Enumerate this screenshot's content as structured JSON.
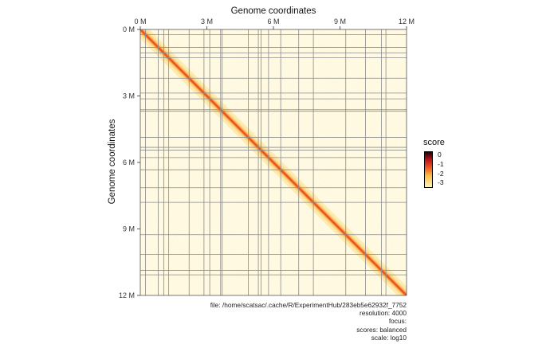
{
  "chart_data": {
    "type": "heatmap",
    "title": "Genome coordinates",
    "xlabel": "Genome coordinates",
    "ylabel": "Genome coordinates",
    "x_ticks": [
      "0 M",
      "3 M",
      "6 M",
      "9 M",
      "12 M"
    ],
    "y_ticks": [
      "0 M",
      "3 M",
      "6 M",
      "9 M",
      "12 M"
    ],
    "tick_values_mb": [
      0,
      3,
      6,
      9,
      12
    ],
    "xlim_mb": [
      0,
      12
    ],
    "ylim_mb": [
      0,
      12
    ],
    "boundaries_mb": [
      0.23,
      0.81,
      1.06,
      1.28,
      2.2,
      2.87,
      3.13,
      3.62,
      3.69,
      4.87,
      5.32,
      5.44,
      5.78,
      6.33,
      7.14,
      7.8,
      9.26,
      10.15,
      10.87,
      11.07
    ],
    "legend": {
      "title": "score",
      "ticks": [
        "0",
        "-1",
        "-2",
        "-3"
      ],
      "range": [
        -3.5,
        0.3
      ],
      "colors": [
        "#160206",
        "#b30f1d",
        "#ef5a23",
        "#fbbf45",
        "#fff3c0"
      ]
    }
  },
  "meta": {
    "file": "file: /home/scatsac/.cache/R/ExperimentHub/283eb5e62932f_7752",
    "resolution": "resolution: 4000",
    "focus": "focus:",
    "scores": "scores: balanced",
    "scale": "scale: log10"
  }
}
